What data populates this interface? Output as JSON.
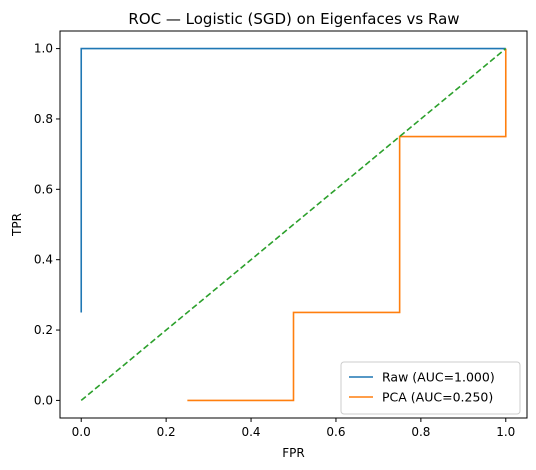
{
  "chart_data": {
    "type": "line",
    "title": "ROC — Logistic (SGD) on Eigenfaces vs Raw",
    "xlabel": "FPR",
    "ylabel": "TPR",
    "xlim": [
      -0.05,
      1.05
    ],
    "ylim": [
      -0.05,
      1.05
    ],
    "xticks": [
      0.0,
      0.2,
      0.4,
      0.6,
      0.8,
      1.0
    ],
    "yticks": [
      0.0,
      0.2,
      0.4,
      0.6,
      0.8,
      1.0
    ],
    "xtick_labels": [
      "0.0",
      "0.2",
      "0.4",
      "0.6",
      "0.8",
      "1.0"
    ],
    "ytick_labels": [
      "0.0",
      "0.2",
      "0.4",
      "0.6",
      "0.8",
      "1.0"
    ],
    "grid": false,
    "legend_position": "lower-right",
    "series": [
      {
        "name": "Raw (AUC=1.000)",
        "color": "#1f77b4",
        "style": "solid",
        "x": [
          0.0,
          0.0,
          1.0
        ],
        "y": [
          0.25,
          1.0,
          1.0
        ]
      },
      {
        "name": "PCA (AUC=0.250)",
        "color": "#ff7f0e",
        "style": "solid",
        "x": [
          0.25,
          0.5,
          0.5,
          0.75,
          0.75,
          1.0,
          1.0
        ],
        "y": [
          0.0,
          0.0,
          0.25,
          0.25,
          0.75,
          0.75,
          1.0
        ]
      },
      {
        "color": "#2ca02c",
        "style": "dashed",
        "x": [
          0.0,
          1.0
        ],
        "y": [
          0.0,
          1.0
        ]
      }
    ]
  }
}
